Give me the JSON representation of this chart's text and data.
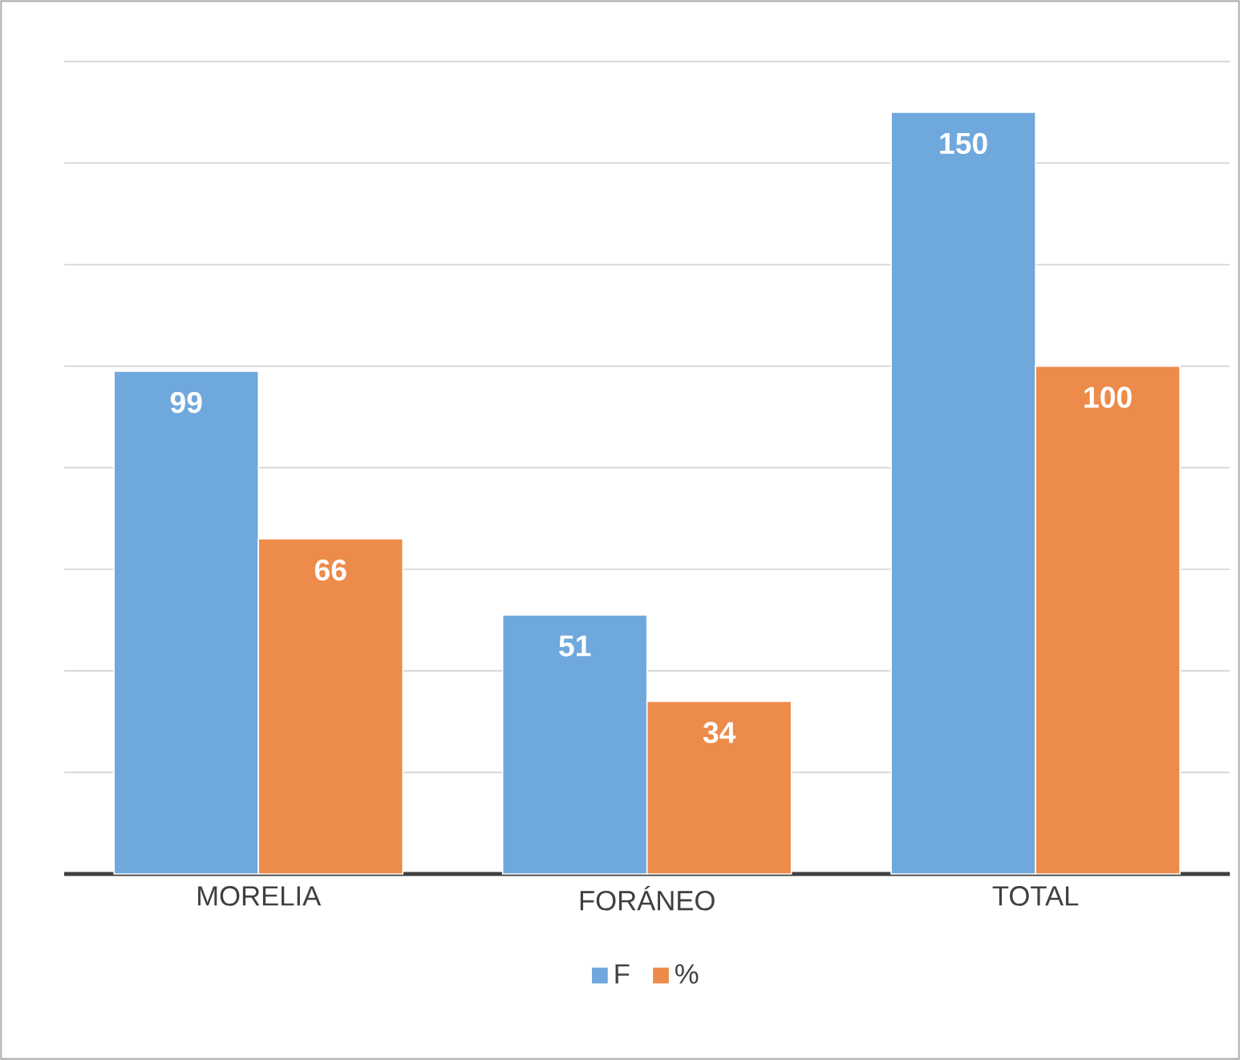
{
  "chart_data": {
    "type": "bar",
    "categories": [
      "MORELIA",
      "FORÁNEO",
      "TOTAL"
    ],
    "series": [
      {
        "name": "F",
        "color": "#6fa8dc",
        "values": [
          99,
          51,
          150
        ]
      },
      {
        "name": "%",
        "color": "#ed8b4a",
        "values": [
          66,
          34,
          100
        ]
      }
    ],
    "ylim": [
      0,
      160
    ],
    "yticks": [
      {
        "value": 0,
        "label": null
      },
      {
        "value": 20,
        "label": null
      },
      {
        "value": 40,
        "label": null
      },
      {
        "value": 60,
        "label": null
      },
      {
        "value": 80,
        "label": null
      },
      {
        "value": 100,
        "label": null
      },
      {
        "value": 120,
        "label": null
      },
      {
        "value": 140,
        "label": null
      },
      {
        "value": 160,
        "label": null
      }
    ],
    "tick_labels": "x",
    "grid": "y",
    "legend": "bottom",
    "data_labels": true
  }
}
